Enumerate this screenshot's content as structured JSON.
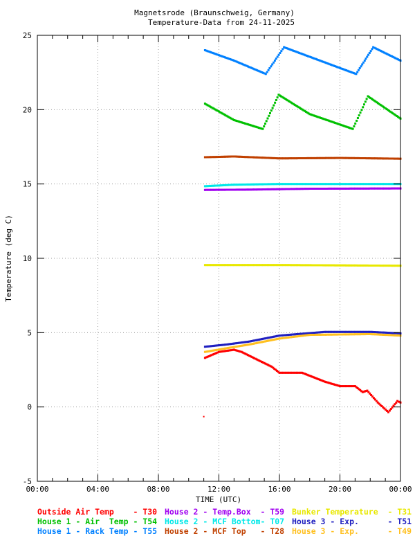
{
  "chart_data": {
    "type": "scatter",
    "title": "Magnetsrode (Braunschweig, Germany)",
    "subtitle": "Temperature-Data from 24-11-2025",
    "xlabel": "TIME (UTC)",
    "ylabel": "Temperature (deg C)",
    "xlim": [
      0,
      24
    ],
    "ylim": [
      -5,
      25
    ],
    "x_ticks": [
      {
        "v": 0,
        "label": "00:00"
      },
      {
        "v": 4,
        "label": "04:00"
      },
      {
        "v": 8,
        "label": "08:00"
      },
      {
        "v": 12,
        "label": "12:00"
      },
      {
        "v": 16,
        "label": "16:00"
      },
      {
        "v": 20,
        "label": "20:00"
      },
      {
        "v": 24,
        "label": "00:00"
      }
    ],
    "y_ticks": [
      {
        "v": -5,
        "label": "-5"
      },
      {
        "v": 0,
        "label": "0"
      },
      {
        "v": 5,
        "label": "5"
      },
      {
        "v": 10,
        "label": "10"
      },
      {
        "v": 15,
        "label": "15"
      },
      {
        "v": 20,
        "label": "20"
      },
      {
        "v": 25,
        "label": "25"
      }
    ],
    "grid": true,
    "legend_position": "bottom",
    "series": [
      {
        "name": "Outside Air Temp    - T30",
        "color": "#ff0000",
        "points": [
          [
            11.0,
            -0.65
          ],
          [
            11.08,
            3.3
          ],
          [
            12,
            3.7
          ],
          [
            13,
            3.85
          ],
          [
            13.5,
            3.7
          ],
          [
            14.5,
            3.2
          ],
          [
            15.5,
            2.7
          ],
          [
            16,
            2.3
          ],
          [
            17.5,
            2.3
          ],
          [
            18,
            2.1
          ],
          [
            19,
            1.7
          ],
          [
            20,
            1.4
          ],
          [
            21,
            1.4
          ],
          [
            21.5,
            1.0
          ],
          [
            21.8,
            1.1
          ],
          [
            22.5,
            0.3
          ],
          [
            23.2,
            -0.35
          ],
          [
            23.8,
            0.4
          ],
          [
            24,
            0.3
          ]
        ],
        "outlier_first": true
      },
      {
        "name": "House 2 - Temp.Box  - T59",
        "color": "#a000f0",
        "points": [
          [
            11.08,
            14.6
          ],
          [
            14,
            14.62
          ],
          [
            18,
            14.68
          ],
          [
            24,
            14.7
          ]
        ]
      },
      {
        "name": "Bunker Temperature  - T31",
        "color": "#e8e800",
        "points": [
          [
            11.08,
            9.55
          ],
          [
            16,
            9.55
          ],
          [
            24,
            9.5
          ]
        ]
      },
      {
        "name": "House 1 - Air  Temp - T54",
        "color": "#00c000",
        "points": [
          [
            11.08,
            20.4
          ],
          [
            13,
            19.3
          ],
          [
            14.9,
            18.7
          ],
          [
            15.95,
            21.0
          ],
          [
            18,
            19.7
          ],
          [
            20.85,
            18.7
          ],
          [
            21.85,
            20.9
          ],
          [
            24,
            19.4
          ]
        ]
      },
      {
        "name": "House 2 - MCF Bottom- T07",
        "color": "#00e8e8",
        "points": [
          [
            11.08,
            14.85
          ],
          [
            13,
            14.95
          ],
          [
            16,
            15.0
          ],
          [
            24,
            15.0
          ]
        ]
      },
      {
        "name": "House 3 - Exp.      - T51",
        "color": "#2020c0",
        "points": [
          [
            11.08,
            4.05
          ],
          [
            12.5,
            4.2
          ],
          [
            14,
            4.4
          ],
          [
            16,
            4.8
          ],
          [
            19,
            5.05
          ],
          [
            22,
            5.05
          ],
          [
            24,
            4.95
          ]
        ]
      },
      {
        "name": "House 1 - Rack Temp - T55",
        "color": "#0080ff",
        "points": [
          [
            11.08,
            24.0
          ],
          [
            13,
            23.3
          ],
          [
            15.1,
            22.4
          ],
          [
            16.3,
            24.2
          ],
          [
            20,
            22.8
          ],
          [
            21.07,
            22.4
          ],
          [
            22.2,
            24.2
          ],
          [
            24,
            23.3
          ]
        ]
      },
      {
        "name": "House 2 - MCF Top   - T28",
        "color": "#c04000",
        "points": [
          [
            11.08,
            16.8
          ],
          [
            13,
            16.85
          ],
          [
            16,
            16.72
          ],
          [
            20,
            16.75
          ],
          [
            24,
            16.7
          ]
        ]
      },
      {
        "name": "House 3 - Exp.      - T49",
        "color": "#ffc020",
        "points": [
          [
            11.08,
            3.7
          ],
          [
            12.5,
            3.95
          ],
          [
            14,
            4.2
          ],
          [
            16,
            4.6
          ],
          [
            18,
            4.85
          ],
          [
            22,
            4.9
          ],
          [
            24,
            4.8
          ]
        ]
      }
    ]
  }
}
